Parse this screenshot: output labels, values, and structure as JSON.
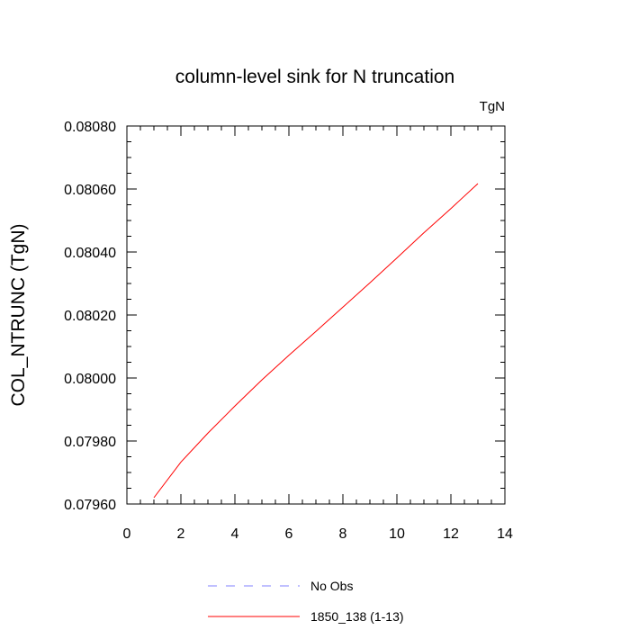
{
  "chart_data": {
    "type": "line",
    "title": "column-level sink for N truncation",
    "units_label": "TgN",
    "xlabel": "",
    "ylabel": "COL_NTRUNC  (TgN)",
    "xlim": [
      0,
      14
    ],
    "ylim": [
      0.0796,
      0.0808
    ],
    "x_ticks": [
      "0",
      "2",
      "4",
      "6",
      "8",
      "10",
      "12",
      "14"
    ],
    "y_ticks": [
      "0.07960",
      "0.07980",
      "0.08000",
      "0.08020",
      "0.08040",
      "0.08060",
      "0.08080"
    ],
    "grid": false,
    "legend_position": "bottom",
    "series": [
      {
        "name": "No Obs",
        "color": "#8080ff",
        "dash": "dashed",
        "x": [],
        "y": []
      },
      {
        "name": "1850_138 (1-13)",
        "color": "#ff0000",
        "dash": "solid",
        "x": [
          1,
          2,
          3,
          4,
          5,
          6,
          7,
          8,
          9,
          10,
          11,
          12,
          13
        ],
        "y": [
          0.07962,
          0.079733,
          0.079825,
          0.079911,
          0.079994,
          0.080072,
          0.080148,
          0.080225,
          0.080302,
          0.080381,
          0.080461,
          0.080538,
          0.080617
        ]
      }
    ]
  }
}
